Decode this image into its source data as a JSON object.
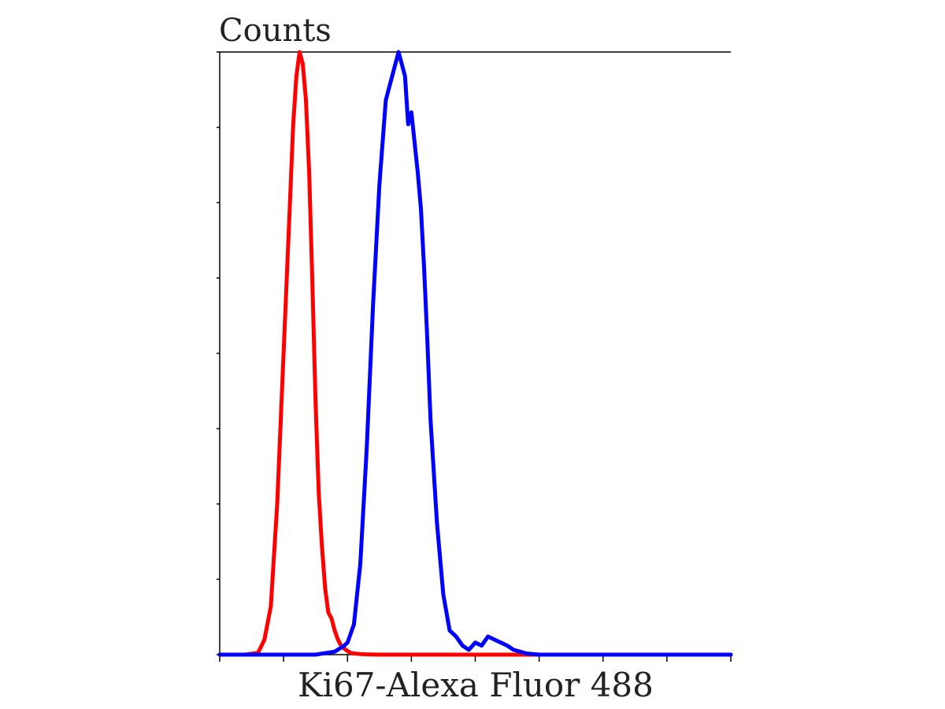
{
  "chart_data": {
    "type": "line",
    "title": "",
    "xlabel": "Ki67-Alexa Fluor 488",
    "ylabel": "Counts",
    "xlim": [
      0,
      800
    ],
    "ylim": [
      0,
      100
    ],
    "x_ticks": [
      0,
      100,
      200,
      300,
      400,
      500,
      600,
      700,
      800
    ],
    "y_ticks": [
      0,
      12.5,
      25,
      37.5,
      50,
      62.5,
      75,
      87.5,
      100
    ],
    "grid": false,
    "legend": "none",
    "series": [
      {
        "color": "#ff0000",
        "x": [
          0,
          40,
          60,
          70,
          80,
          90,
          100,
          110,
          115,
          120,
          125,
          130,
          135,
          140,
          145,
          150,
          155,
          160,
          165,
          170,
          175,
          180,
          185,
          190,
          195,
          200,
          205,
          210,
          220,
          230,
          250,
          280,
          320,
          400,
          550,
          700,
          800
        ],
        "y": [
          0,
          0,
          0.3,
          2.5,
          8,
          25,
          50,
          75,
          88,
          96,
          100,
          98,
          92,
          80,
          62,
          42,
          27,
          18,
          11,
          7,
          6,
          4,
          2.5,
          1.5,
          1,
          0.6,
          0.3,
          0.2,
          0.1,
          0.05,
          0,
          0,
          0,
          0,
          0,
          0,
          0
        ]
      },
      {
        "color": "#0000ff",
        "x": [
          0,
          150,
          180,
          195,
          200,
          210,
          220,
          230,
          240,
          250,
          260,
          270,
          280,
          290,
          295,
          300,
          310,
          315,
          320,
          325,
          330,
          340,
          350,
          360,
          370,
          380,
          390,
          400,
          410,
          420,
          430,
          440,
          450,
          460,
          470,
          480,
          500,
          600,
          800
        ],
        "y": [
          0,
          0,
          0.5,
          1.5,
          2,
          5,
          15,
          34,
          58,
          78,
          92,
          96,
          100,
          96,
          88,
          90,
          80,
          74,
          64,
          52,
          39,
          22,
          10,
          4,
          3,
          1.5,
          0.8,
          2,
          1.5,
          3,
          2.5,
          2,
          1.5,
          0.8,
          0.5,
          0.2,
          0,
          0,
          0
        ]
      }
    ]
  }
}
